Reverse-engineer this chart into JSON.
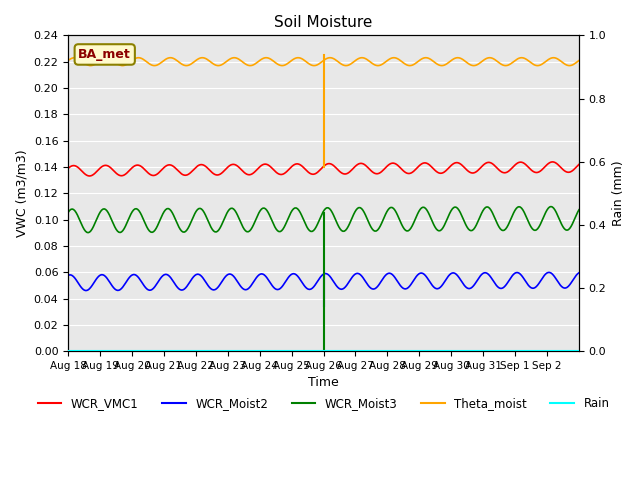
{
  "title": "Soil Moisture",
  "ylabel_left": "VWC (m3/m3)",
  "ylabel_right": "Rain (mm)",
  "xlabel": "Time",
  "ylim_left": [
    0.0,
    0.24
  ],
  "ylim_right": [
    0.0,
    1.0
  ],
  "yticks_left": [
    0.0,
    0.02,
    0.04,
    0.06,
    0.08,
    0.1,
    0.12,
    0.14,
    0.16,
    0.18,
    0.2,
    0.22,
    0.24
  ],
  "yticks_right": [
    0.0,
    0.2,
    0.4,
    0.6,
    0.8,
    1.0
  ],
  "plot_bg_color": "#e8e8e8",
  "station_label": "BA_met",
  "spike_day": 8.0,
  "colors": {
    "WCR_VMC1": "red",
    "WCR_Moist2": "blue",
    "WCR_Moist3": "green",
    "Theta_moist": "orange",
    "Rain": "cyan"
  },
  "day_labels": [
    "Aug 18",
    "Aug 19",
    "Aug 20",
    "Aug 21",
    "Aug 22",
    "Aug 23",
    "Aug 24",
    "Aug 25",
    "Aug 26",
    "Aug 27",
    "Aug 28",
    "Aug 29",
    "Aug 30",
    "Aug 31",
    "Sep 1",
    "Sep 2"
  ]
}
